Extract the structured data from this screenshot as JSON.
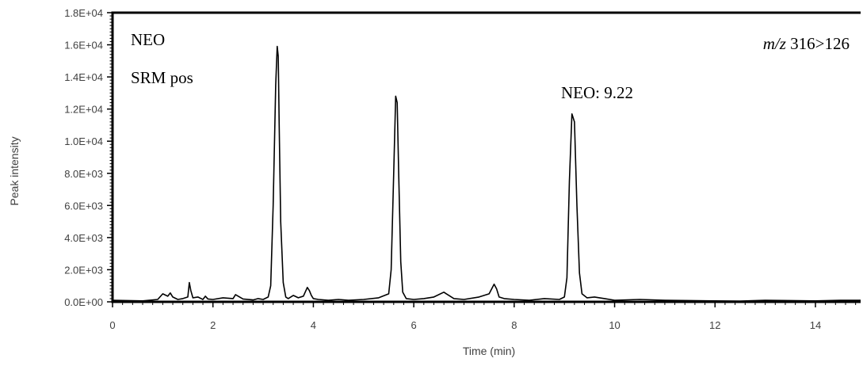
{
  "chart_data": {
    "type": "line",
    "title": "",
    "xlabel": "Time (min)",
    "ylabel": "Peak intensity",
    "xlim": [
      0,
      14.9
    ],
    "ylim": [
      0,
      18000
    ],
    "x_ticks": [
      0,
      2,
      4,
      6,
      8,
      10,
      12,
      14
    ],
    "x_tick_labels": [
      "0",
      "2",
      "4",
      "6",
      "8",
      "10",
      "12",
      "14"
    ],
    "y_ticks": [
      0,
      2000,
      4000,
      6000,
      8000,
      10000,
      12000,
      14000,
      16000,
      18000
    ],
    "y_tick_labels": [
      "0.0E+00",
      "2.0E+03",
      "4.0E+03",
      "6.0E+03",
      "8.0E+03",
      "1.0E+04",
      "1.2E+04",
      "1.4E+04",
      "1.6E+04",
      "1.8E+04"
    ],
    "grid": false,
    "legend": "none",
    "line_color": "#000000",
    "annotations": {
      "compound": "NEO",
      "mode": "SRM pos",
      "transition_prefix": "m/z",
      "transition_value": " 316>126",
      "peak_label": "NEO: 9.22"
    },
    "series": [
      {
        "x": [
          0,
          0.3,
          0.6,
          0.9,
          1.0,
          1.1,
          1.15,
          1.2,
          1.3,
          1.4,
          1.5,
          1.53,
          1.56,
          1.6,
          1.7,
          1.8,
          1.85,
          1.9,
          2.0,
          2.2,
          2.4,
          2.45,
          2.6,
          2.8,
          2.9,
          3.0,
          3.1,
          3.15,
          3.2,
          3.25,
          3.28,
          3.3,
          3.32,
          3.35,
          3.4,
          3.45,
          3.5,
          3.6,
          3.7,
          3.8,
          3.88,
          3.92,
          3.96,
          4.0,
          4.1,
          4.3,
          4.5,
          4.7,
          5.0,
          5.3,
          5.5,
          5.55,
          5.6,
          5.64,
          5.67,
          5.7,
          5.74,
          5.78,
          5.85,
          6.0,
          6.2,
          6.4,
          6.6,
          6.65,
          6.7,
          6.8,
          7.0,
          7.3,
          7.5,
          7.6,
          7.65,
          7.7,
          7.8,
          8.0,
          8.3,
          8.6,
          8.9,
          9.0,
          9.05,
          9.1,
          9.15,
          9.2,
          9.25,
          9.3,
          9.35,
          9.45,
          9.6,
          9.8,
          10.0,
          10.5,
          11.0,
          11.5,
          12.0,
          12.5,
          13.0,
          13.5,
          14.0,
          14.5,
          14.9
        ],
        "y": [
          100,
          80,
          60,
          150,
          500,
          350,
          550,
          300,
          150,
          200,
          300,
          1200,
          700,
          250,
          300,
          150,
          350,
          180,
          150,
          250,
          200,
          450,
          180,
          120,
          200,
          150,
          300,
          1000,
          6000,
          13500,
          15900,
          15300,
          11000,
          5000,
          1200,
          300,
          200,
          400,
          250,
          350,
          900,
          700,
          400,
          200,
          150,
          100,
          150,
          100,
          150,
          250,
          500,
          2000,
          8000,
          12800,
          12400,
          8000,
          2500,
          600,
          200,
          150,
          200,
          300,
          600,
          500,
          400,
          200,
          150,
          300,
          500,
          1100,
          800,
          300,
          200,
          150,
          100,
          200,
          150,
          300,
          1500,
          7500,
          11700,
          11200,
          6000,
          1800,
          500,
          250,
          300,
          200,
          100,
          150,
          100,
          80,
          60,
          50,
          100,
          80,
          60,
          100,
          100
        ]
      }
    ]
  }
}
